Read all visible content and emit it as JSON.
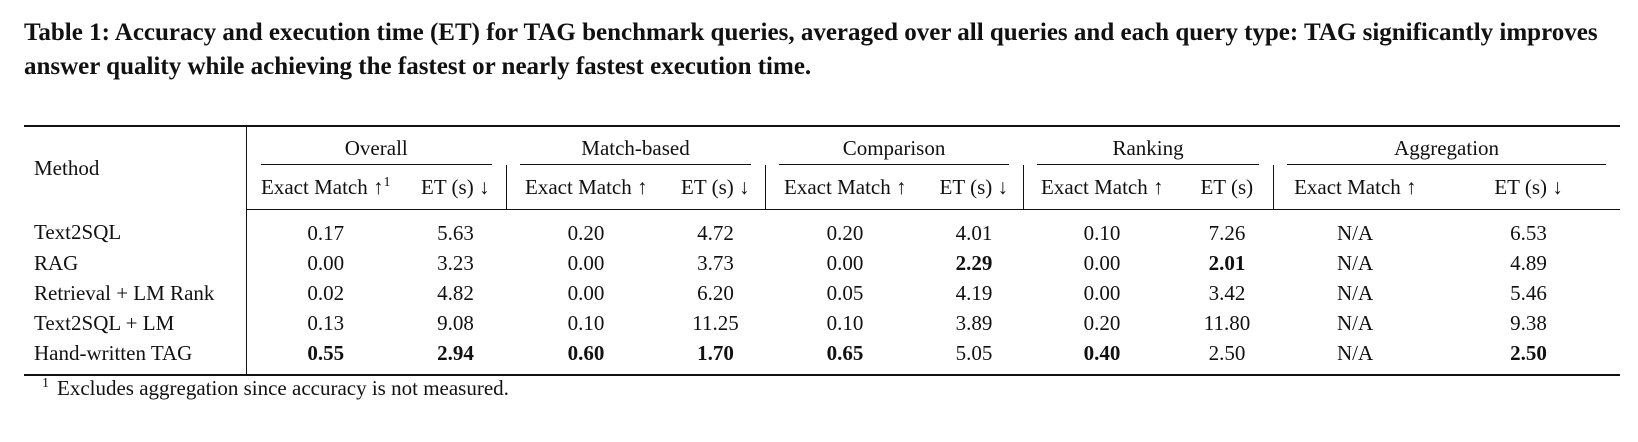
{
  "caption": "Table 1: Accuracy and execution time (ET) for TAG benchmark queries, averaged over all queries and each query type: TAG significantly improves answer quality while achieving the fastest or nearly fastest execution time.",
  "table": {
    "method_header": "Method",
    "groups": [
      "Overall",
      "Match-based",
      "Comparison",
      "Ranking",
      "Aggregation"
    ],
    "subheaders": [
      "Exact Match ↑",
      "ET (s) ↓",
      "Exact Match ↑",
      "ET (s) ↓",
      "Exact Match ↑",
      "ET (s) ↓",
      "Exact Match ↑",
      "ET (s)",
      "Exact Match ↑",
      "ET (s) ↓"
    ],
    "overall_em_footnote_mark": "1",
    "rows": [
      {
        "method": "Text2SQL",
        "values": [
          "0.17",
          "5.63",
          "0.20",
          "4.72",
          "0.20",
          "4.01",
          "0.10",
          "7.26",
          "N/A",
          "6.53"
        ]
      },
      {
        "method": "RAG",
        "values": [
          "0.00",
          "3.23",
          "0.00",
          "3.73",
          "0.00",
          "2.29",
          "0.00",
          "2.01",
          "N/A",
          "4.89"
        ]
      },
      {
        "method": "Retrieval + LM Rank",
        "values": [
          "0.02",
          "4.82",
          "0.00",
          "6.20",
          "0.05",
          "4.19",
          "0.00",
          "3.42",
          "N/A",
          "5.46"
        ]
      },
      {
        "method": "Text2SQL + LM",
        "values": [
          "0.13",
          "9.08",
          "0.10",
          "11.25",
          "0.10",
          "3.89",
          "0.20",
          "11.80",
          "N/A",
          "9.38"
        ]
      },
      {
        "method": "Hand-written TAG",
        "values": [
          "0.55",
          "2.94",
          "0.60",
          "1.70",
          "0.65",
          "5.05",
          "0.40",
          "2.50",
          "N/A",
          "2.50"
        ]
      }
    ]
  },
  "footnote": {
    "mark": "1",
    "text": "Excludes aggregation since accuracy is not measured."
  }
}
